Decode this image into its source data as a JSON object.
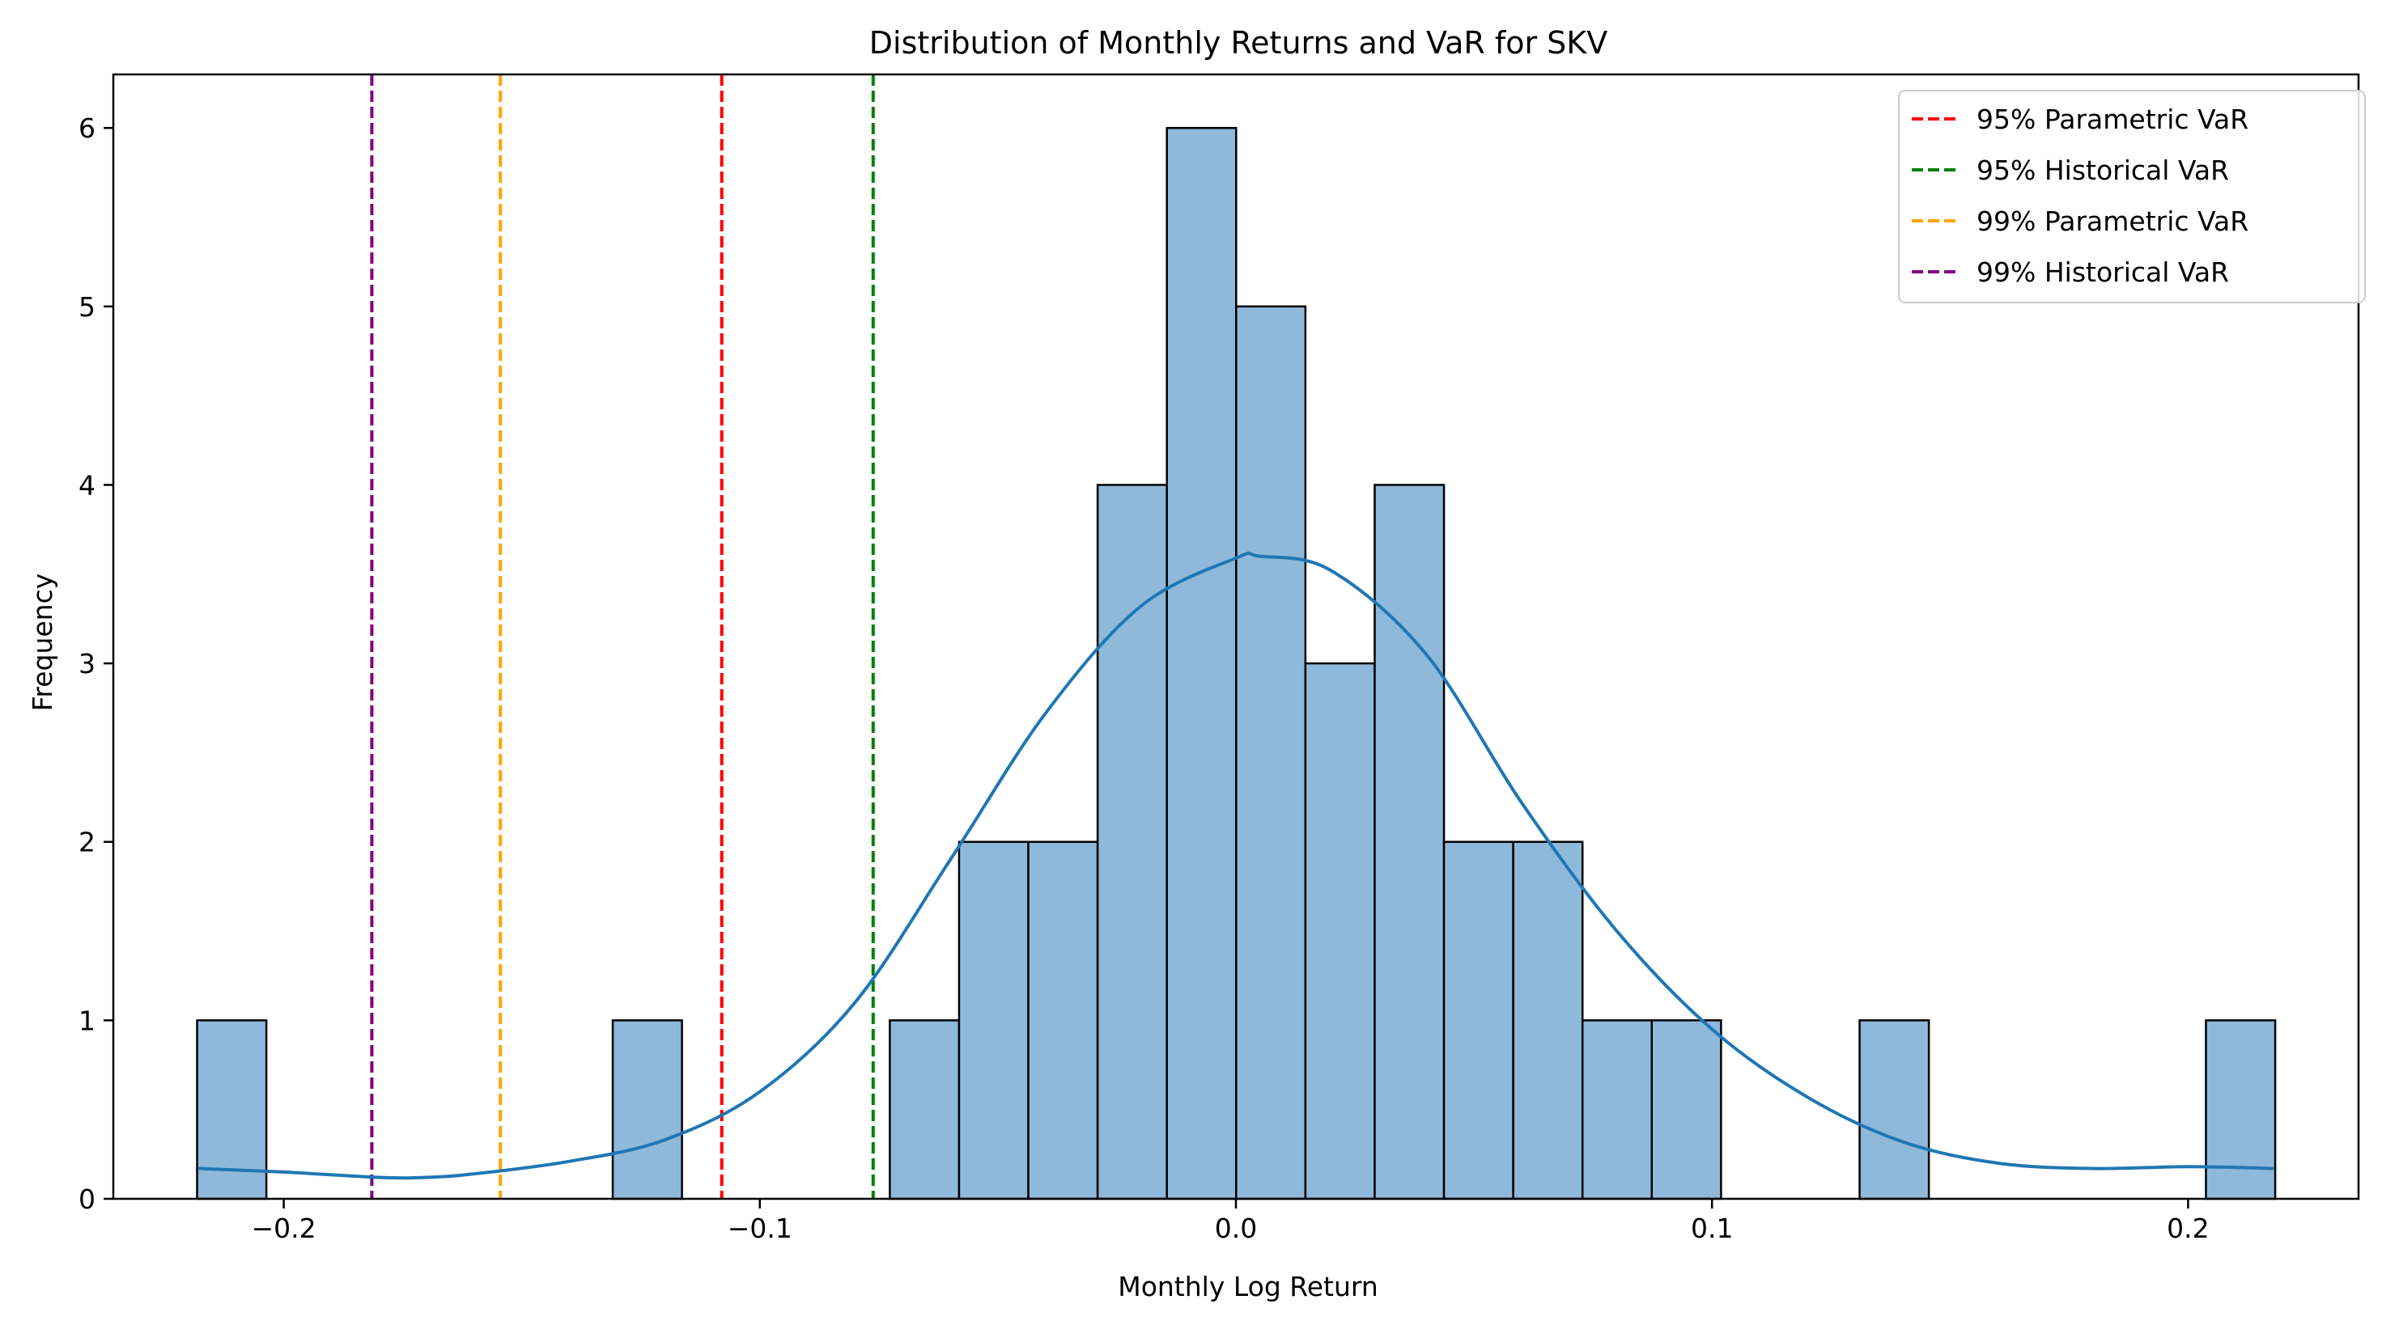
{
  "chart_data": {
    "type": "bar",
    "title": "Distribution of Monthly Returns and VaR for SKV",
    "xlabel": "Monthly Log Return",
    "ylabel": "Frequency",
    "xlim": [
      -0.2358,
      0.2358
    ],
    "ylim": [
      0,
      6.3
    ],
    "grid": false,
    "legend_position": "top-right",
    "x_ticks": [
      -0.2,
      -0.1,
      0.0,
      0.1,
      0.2
    ],
    "x_tick_labels": [
      "−0.2",
      "−0.1",
      "0.0",
      "0.1",
      "0.2"
    ],
    "y_ticks": [
      0,
      1,
      2,
      3,
      4,
      5,
      6
    ],
    "y_tick_labels": [
      "0",
      "1",
      "2",
      "3",
      "4",
      "5",
      "6"
    ],
    "histogram": {
      "bin_start": -0.2182,
      "bin_width": 0.01455,
      "counts": [
        1,
        0,
        0,
        0,
        0,
        0,
        1,
        0,
        0,
        0,
        1,
        2,
        2,
        4,
        6,
        5,
        3,
        4,
        2,
        2,
        1,
        1,
        0,
        0,
        1,
        0,
        0,
        0,
        0,
        1
      ],
      "fill_color": "#8fb9da",
      "edge_color": "#000000"
    },
    "kde": {
      "name": "kde",
      "color": "#1f77b4",
      "x": [
        -0.218,
        -0.2,
        -0.18,
        -0.17,
        -0.16,
        -0.14,
        -0.12,
        -0.1,
        -0.08,
        -0.06,
        -0.04,
        -0.02,
        0.0,
        0.005,
        0.02,
        0.04,
        0.06,
        0.08,
        0.1,
        0.12,
        0.14,
        0.16,
        0.18,
        0.2,
        0.218
      ],
      "y": [
        0.17,
        0.15,
        0.12,
        0.12,
        0.14,
        0.21,
        0.33,
        0.6,
        1.1,
        1.9,
        2.72,
        3.32,
        3.59,
        3.6,
        3.52,
        3.05,
        2.22,
        1.5,
        0.95,
        0.57,
        0.32,
        0.2,
        0.17,
        0.18,
        0.17
      ]
    },
    "var_lines": [
      {
        "name": "95% Parametric VaR",
        "x": -0.108,
        "color": "#ff0000"
      },
      {
        "name": "95% Historical VaR",
        "x": -0.0762,
        "color": "#008000"
      },
      {
        "name": "99% Parametric VaR",
        "x": -0.1545,
        "color": "#ffa500"
      },
      {
        "name": "99% Historical VaR",
        "x": -0.1815,
        "color": "#800080"
      }
    ]
  }
}
